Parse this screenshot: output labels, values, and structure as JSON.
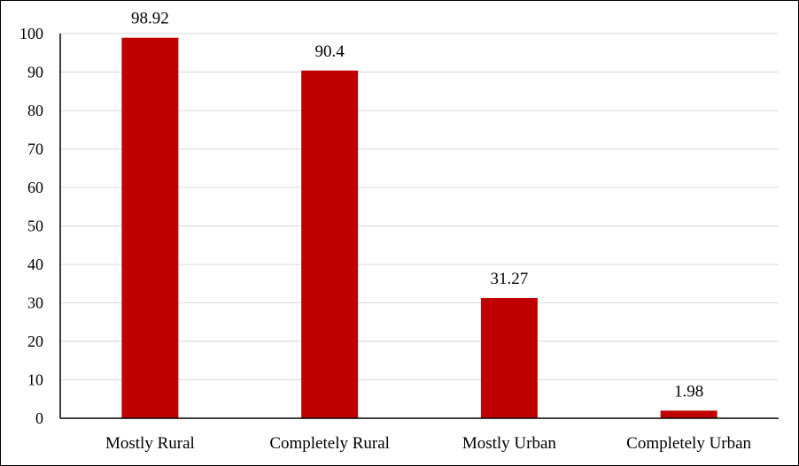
{
  "chart_data": {
    "type": "bar",
    "title": "",
    "xlabel": "",
    "ylabel": "",
    "categories": [
      "Mostly Rural",
      "Completely Rural",
      "Mostly Urban",
      "Completely Urban"
    ],
    "values": [
      98.92,
      90.4,
      31.27,
      1.98
    ],
    "value_labels": [
      "98.92",
      "90.4",
      "31.27",
      "1.98"
    ],
    "ylim": [
      0,
      100
    ],
    "yticks": [
      0,
      10,
      20,
      30,
      40,
      50,
      60,
      70,
      80,
      90,
      100
    ],
    "grid": true,
    "legend": "none",
    "bar_color": "#C00000",
    "grid_color": "#D9D9D9",
    "axis_color": "#000000"
  }
}
